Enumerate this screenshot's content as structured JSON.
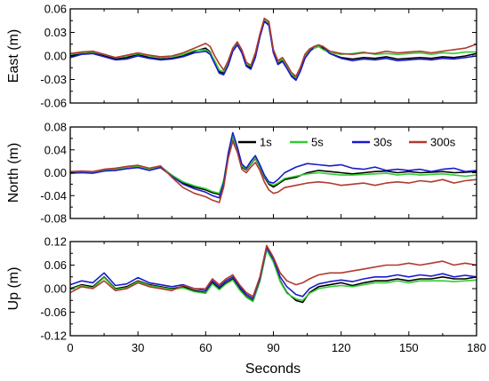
{
  "chart_data": {
    "type": "line",
    "xlabel": "Seconds",
    "xlim": [
      0,
      180
    ],
    "xticks": [
      0,
      30,
      60,
      90,
      120,
      150,
      180
    ],
    "colors": [
      "#000000",
      "#33cc33",
      "#1a1acc",
      "#b03a2e"
    ],
    "legend": {
      "placement": "top-right",
      "panel": 1,
      "entries": [
        "1s",
        "5s",
        "30s",
        "300s"
      ]
    },
    "panels": [
      {
        "ylabel": "East (m)",
        "ylim": [
          -0.06,
          0.06
        ],
        "yticks": [
          -0.06,
          -0.03,
          0.0,
          0.03,
          0.06
        ],
        "ytick_labels": [
          "-0.06",
          "-0.03",
          "0.00",
          "0.03",
          "0.06"
        ],
        "x": [
          0,
          5,
          10,
          15,
          20,
          25,
          30,
          35,
          40,
          45,
          50,
          55,
          60,
          62,
          64,
          66,
          68,
          70,
          72,
          74,
          76,
          78,
          80,
          82,
          84,
          86,
          88,
          90,
          92,
          94,
          96,
          98,
          100,
          102,
          104,
          106,
          108,
          110,
          112,
          115,
          120,
          125,
          130,
          135,
          140,
          145,
          150,
          155,
          160,
          165,
          170,
          175,
          180
        ],
        "series": [
          {
            "name": "1s",
            "values": [
              0.0,
              0.003,
              0.004,
              0.0,
              -0.004,
              -0.002,
              0.002,
              -0.002,
              -0.004,
              -0.003,
              0.0,
              0.006,
              0.01,
              0.005,
              -0.008,
              -0.02,
              -0.022,
              -0.01,
              0.008,
              0.016,
              0.005,
              -0.012,
              -0.015,
              0.0,
              0.025,
              0.045,
              0.04,
              0.005,
              -0.01,
              -0.005,
              -0.015,
              -0.025,
              -0.03,
              -0.018,
              -0.002,
              0.006,
              0.01,
              0.012,
              0.01,
              0.003,
              -0.002,
              -0.004,
              -0.002,
              -0.003,
              -0.001,
              -0.004,
              -0.003,
              -0.002,
              -0.003,
              -0.001,
              -0.002,
              0.0,
              0.003
            ]
          },
          {
            "name": "5s",
            "values": [
              0.002,
              0.004,
              0.005,
              0.002,
              -0.002,
              0.0,
              0.003,
              0.0,
              -0.002,
              -0.001,
              0.002,
              0.007,
              0.008,
              0.004,
              -0.006,
              -0.018,
              -0.02,
              -0.008,
              0.008,
              0.015,
              0.006,
              -0.01,
              -0.013,
              0.002,
              0.026,
              0.046,
              0.042,
              0.007,
              -0.008,
              -0.004,
              -0.013,
              -0.023,
              -0.028,
              -0.016,
              0.0,
              0.008,
              0.01,
              0.012,
              0.008,
              0.004,
              0.002,
              0.003,
              0.005,
              0.002,
              0.003,
              0.002,
              0.003,
              0.004,
              0.002,
              0.004,
              0.003,
              0.005,
              0.005
            ]
          },
          {
            "name": "30s",
            "values": [
              -0.002,
              0.002,
              0.003,
              -0.001,
              -0.005,
              -0.004,
              0.0,
              -0.003,
              -0.005,
              -0.004,
              -0.001,
              0.004,
              0.006,
              0.002,
              -0.01,
              -0.022,
              -0.024,
              -0.012,
              0.006,
              0.014,
              0.004,
              -0.013,
              -0.017,
              -0.002,
              0.024,
              0.044,
              0.039,
              0.004,
              -0.011,
              -0.007,
              -0.016,
              -0.026,
              -0.031,
              -0.019,
              -0.003,
              0.005,
              0.012,
              0.014,
              0.012,
              0.003,
              -0.003,
              -0.006,
              -0.004,
              -0.005,
              -0.003,
              -0.006,
              -0.005,
              -0.004,
              -0.005,
              -0.003,
              -0.004,
              -0.002,
              0.0
            ]
          },
          {
            "name": "300s",
            "values": [
              0.003,
              0.005,
              0.006,
              0.002,
              -0.002,
              0.001,
              0.004,
              0.001,
              -0.001,
              0.0,
              0.004,
              0.01,
              0.016,
              0.012,
              0.0,
              -0.01,
              -0.018,
              -0.006,
              0.01,
              0.018,
              0.008,
              -0.008,
              -0.012,
              0.004,
              0.028,
              0.048,
              0.044,
              0.008,
              -0.006,
              -0.002,
              -0.011,
              -0.021,
              -0.026,
              -0.014,
              0.002,
              0.009,
              0.012,
              0.014,
              0.012,
              0.006,
              0.003,
              0.002,
              0.004,
              0.003,
              0.006,
              0.004,
              0.005,
              0.006,
              0.004,
              0.006,
              0.008,
              0.01,
              0.015
            ]
          }
        ]
      },
      {
        "ylabel": "North (m)",
        "ylim": [
          -0.08,
          0.08
        ],
        "yticks": [
          -0.08,
          -0.04,
          0.0,
          0.04,
          0.08
        ],
        "ytick_labels": [
          "-0.08",
          "-0.04",
          "0.00",
          "0.04",
          "0.08"
        ],
        "x": [
          0,
          5,
          10,
          15,
          20,
          25,
          30,
          35,
          40,
          45,
          50,
          55,
          60,
          63,
          66,
          68,
          70,
          72,
          74,
          76,
          78,
          80,
          82,
          84,
          86,
          88,
          90,
          92,
          95,
          100,
          105,
          110,
          115,
          120,
          125,
          130,
          135,
          140,
          145,
          150,
          155,
          160,
          165,
          170,
          175,
          180
        ],
        "series": [
          {
            "name": "1s",
            "values": [
              0.0,
              0.001,
              0.0,
              0.004,
              0.005,
              0.008,
              0.01,
              0.005,
              0.01,
              -0.005,
              -0.018,
              -0.025,
              -0.03,
              -0.035,
              -0.038,
              -0.015,
              0.03,
              0.06,
              0.04,
              0.01,
              0.005,
              0.015,
              0.025,
              0.01,
              -0.008,
              -0.02,
              -0.025,
              -0.02,
              -0.012,
              -0.008,
              0.0,
              0.004,
              0.002,
              0.0,
              -0.002,
              0.0,
              0.002,
              0.003,
              0.0,
              0.002,
              0.0,
              0.001,
              0.002,
              0.0,
              0.001,
              0.002
            ]
          },
          {
            "name": "5s",
            "values": [
              0.001,
              0.002,
              0.001,
              0.005,
              0.006,
              0.009,
              0.011,
              0.006,
              0.011,
              -0.004,
              -0.016,
              -0.023,
              -0.028,
              -0.033,
              -0.036,
              -0.013,
              0.032,
              0.062,
              0.042,
              0.012,
              0.006,
              0.016,
              0.026,
              0.011,
              -0.006,
              -0.018,
              -0.022,
              -0.018,
              -0.01,
              -0.006,
              -0.002,
              0.0,
              -0.002,
              -0.004,
              -0.004,
              -0.003,
              -0.002,
              -0.001,
              -0.004,
              -0.002,
              -0.004,
              -0.003,
              -0.002,
              -0.004,
              -0.006,
              -0.004
            ]
          },
          {
            "name": "30s",
            "values": [
              -0.001,
              0.0,
              -0.001,
              0.003,
              0.004,
              0.007,
              0.009,
              0.004,
              0.009,
              -0.006,
              -0.02,
              -0.028,
              -0.034,
              -0.04,
              -0.044,
              -0.018,
              0.034,
              0.07,
              0.045,
              0.015,
              0.008,
              0.02,
              0.03,
              0.014,
              -0.004,
              -0.016,
              -0.018,
              -0.012,
              0.0,
              0.01,
              0.016,
              0.014,
              0.012,
              0.014,
              0.008,
              0.006,
              0.01,
              0.004,
              0.006,
              0.004,
              0.006,
              0.002,
              0.006,
              0.008,
              0.002,
              0.004
            ]
          },
          {
            "name": "300s",
            "values": [
              0.002,
              0.003,
              0.002,
              0.006,
              0.008,
              0.011,
              0.013,
              0.008,
              0.012,
              -0.008,
              -0.026,
              -0.036,
              -0.042,
              -0.048,
              -0.052,
              -0.025,
              0.025,
              0.055,
              0.036,
              0.006,
              0.0,
              0.01,
              0.018,
              0.004,
              -0.016,
              -0.03,
              -0.036,
              -0.034,
              -0.026,
              -0.022,
              -0.018,
              -0.016,
              -0.018,
              -0.022,
              -0.02,
              -0.018,
              -0.022,
              -0.018,
              -0.016,
              -0.018,
              -0.014,
              -0.016,
              -0.012,
              -0.018,
              -0.014,
              -0.012
            ]
          }
        ]
      },
      {
        "ylabel": "Up (m)",
        "ylim": [
          -0.12,
          0.12
        ],
        "yticks": [
          -0.12,
          -0.06,
          0.0,
          0.06,
          0.12
        ],
        "ytick_labels": [
          "-0.12",
          "-0.06",
          "0.00",
          "0.06",
          "0.12"
        ],
        "x": [
          0,
          5,
          10,
          15,
          20,
          25,
          30,
          35,
          40,
          45,
          50,
          55,
          60,
          63,
          66,
          69,
          72,
          75,
          78,
          81,
          84,
          87,
          90,
          93,
          96,
          100,
          103,
          106,
          110,
          115,
          120,
          125,
          130,
          135,
          140,
          145,
          150,
          155,
          160,
          165,
          170,
          175,
          180
        ],
        "series": [
          {
            "name": "1s",
            "values": [
              0.0,
              0.01,
              0.005,
              0.03,
              0.0,
              0.005,
              0.02,
              0.01,
              0.005,
              0.0,
              0.005,
              -0.005,
              -0.01,
              0.015,
              0.0,
              0.015,
              0.025,
              0.0,
              -0.02,
              -0.03,
              0.02,
              0.1,
              0.07,
              0.02,
              -0.01,
              -0.03,
              -0.035,
              -0.01,
              0.005,
              0.01,
              0.015,
              0.008,
              0.015,
              0.02,
              0.02,
              0.025,
              0.02,
              0.025,
              0.025,
              0.03,
              0.025,
              0.025,
              0.03
            ]
          },
          {
            "name": "5s",
            "values": [
              -0.002,
              0.008,
              0.002,
              0.028,
              -0.002,
              0.002,
              0.018,
              0.008,
              0.003,
              -0.002,
              0.002,
              -0.008,
              -0.012,
              0.012,
              -0.003,
              0.012,
              0.022,
              -0.003,
              -0.022,
              -0.033,
              0.018,
              0.098,
              0.068,
              0.018,
              -0.012,
              -0.026,
              -0.03,
              -0.012,
              0.0,
              0.005,
              0.008,
              0.005,
              0.01,
              0.015,
              0.015,
              0.02,
              0.015,
              0.02,
              0.02,
              0.02,
              0.018,
              0.02,
              0.022
            ]
          },
          {
            "name": "30s",
            "values": [
              0.01,
              0.02,
              0.015,
              0.04,
              0.008,
              0.012,
              0.028,
              0.015,
              0.01,
              0.005,
              0.01,
              0.0,
              -0.005,
              0.02,
              0.005,
              0.02,
              0.03,
              0.005,
              -0.015,
              -0.025,
              0.025,
              0.105,
              0.075,
              0.03,
              0.005,
              -0.015,
              -0.02,
              0.0,
              0.012,
              0.018,
              0.022,
              0.018,
              0.025,
              0.03,
              0.03,
              0.035,
              0.03,
              0.035,
              0.032,
              0.038,
              0.03,
              0.034,
              0.03
            ]
          },
          {
            "name": "300s",
            "values": [
              -0.01,
              0.005,
              0.0,
              0.02,
              -0.005,
              0.0,
              0.015,
              0.005,
              0.0,
              -0.005,
              0.008,
              0.0,
              0.0,
              0.025,
              0.01,
              0.025,
              0.035,
              0.01,
              -0.01,
              -0.02,
              0.03,
              0.11,
              0.08,
              0.04,
              0.02,
              0.01,
              0.015,
              0.025,
              0.035,
              0.04,
              0.04,
              0.045,
              0.05,
              0.055,
              0.06,
              0.06,
              0.065,
              0.06,
              0.065,
              0.07,
              0.06,
              0.065,
              0.06
            ]
          }
        ]
      }
    ]
  }
}
